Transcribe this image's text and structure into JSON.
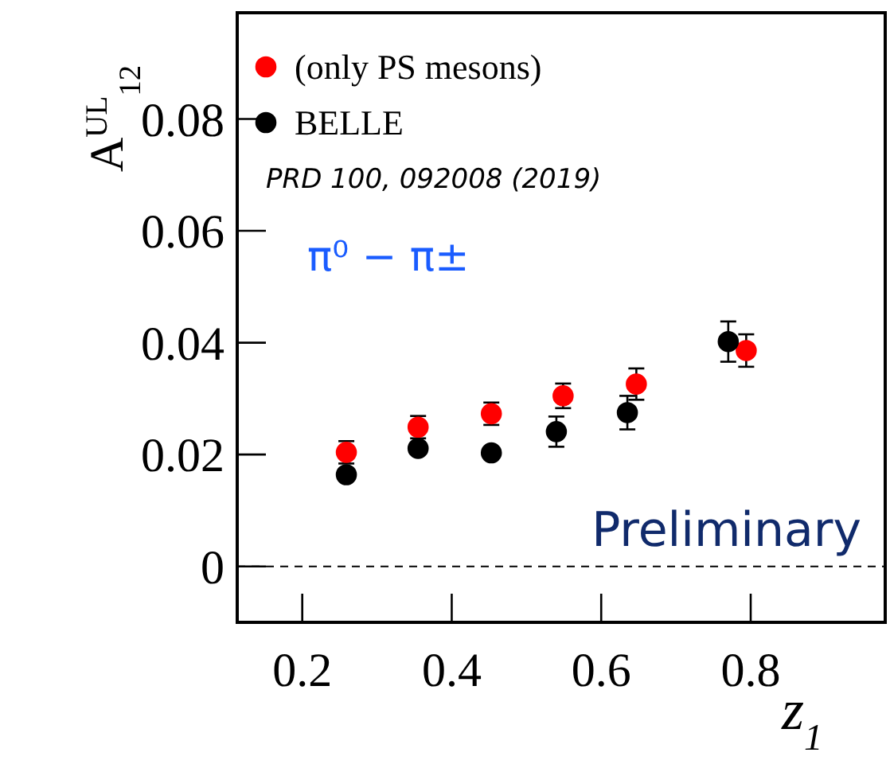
{
  "chart_data": {
    "type": "scatter",
    "xlabel": "z$_{1}$",
    "ylabel": "A$^{UL}$$_{12}$",
    "xlim": [
      0.113,
      0.98
    ],
    "ylim": [
      -0.01,
      0.099
    ],
    "xticks": [
      0.2,
      0.4,
      0.6,
      0.8
    ],
    "yticks": [
      0,
      0.02,
      0.04,
      0.06,
      0.08
    ],
    "marker": "circle",
    "legend": "top left",
    "series": [
      {
        "name": "(only PS mesons)",
        "color": "#ff0000",
        "x": [
          0.259,
          0.355,
          0.453,
          0.549,
          0.647,
          0.794
        ],
        "values": [
          0.0204,
          0.0249,
          0.0273,
          0.0305,
          0.0326,
          0.0386
        ],
        "errors": [
          0.002,
          0.002,
          0.002,
          0.0022,
          0.0028,
          0.0029
        ]
      },
      {
        "name": "BELLE",
        "color": "#000000",
        "x": [
          0.259,
          0.355,
          0.453,
          0.54,
          0.635,
          0.77
        ],
        "values": [
          0.0164,
          0.0211,
          0.0203,
          0.0241,
          0.0275,
          0.0402
        ],
        "errors": [
          null,
          null,
          null,
          0.0027,
          0.003,
          0.0036
        ]
      }
    ],
    "ref_lines": [
      {
        "axis": "y",
        "value": 0,
        "line_style": "dashed",
        "color": "#000000"
      }
    ],
    "annotations": [
      "PRD 100, 092008 (2019)",
      "π⁰ − π±",
      "Preliminary"
    ]
  }
}
